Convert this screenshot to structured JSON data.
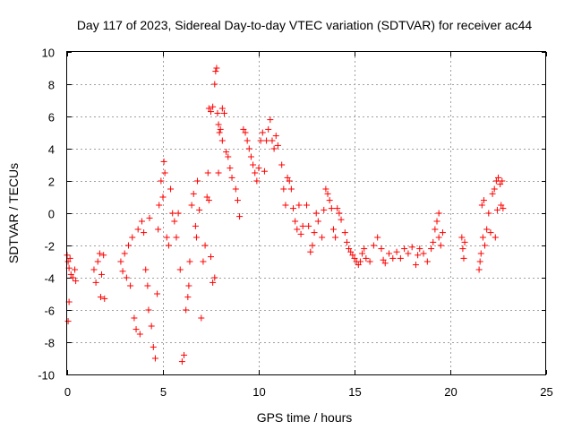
{
  "chart_data": {
    "type": "scatter",
    "title": "Day 117 of 2023, Sidereal Day-to-day VTEC variation (SDTVAR) for receiver ac44",
    "xlabel": "GPS time / hours",
    "ylabel": "SDTVAR / TECUs",
    "xlim": [
      0,
      25
    ],
    "ylim": [
      -10,
      10
    ],
    "xticks": [
      0,
      5,
      10,
      15,
      20,
      25
    ],
    "yticks": [
      -10,
      -8,
      -6,
      -4,
      -2,
      0,
      2,
      4,
      6,
      8,
      10
    ],
    "grid": true,
    "marker": "+",
    "color": "#ff0000",
    "series": [
      {
        "name": "SDTVAR",
        "points": [
          [
            0.0,
            -2.6
          ],
          [
            0.05,
            -3.0
          ],
          [
            0.1,
            -3.4
          ],
          [
            0.15,
            -2.8
          ],
          [
            0.1,
            -5.5
          ],
          [
            0.05,
            -6.7
          ],
          [
            0.2,
            -3.8
          ],
          [
            0.3,
            -4.0
          ],
          [
            0.4,
            -3.5
          ],
          [
            0.45,
            -4.2
          ],
          [
            1.4,
            -3.5
          ],
          [
            1.5,
            -4.3
          ],
          [
            1.6,
            -3.0
          ],
          [
            1.7,
            -2.5
          ],
          [
            1.75,
            -5.2
          ],
          [
            1.8,
            -3.8
          ],
          [
            1.9,
            -2.6
          ],
          [
            1.95,
            -5.3
          ],
          [
            2.8,
            -3.0
          ],
          [
            2.9,
            -3.6
          ],
          [
            3.0,
            -2.5
          ],
          [
            3.1,
            -4.0
          ],
          [
            3.2,
            -2.0
          ],
          [
            3.3,
            -4.5
          ],
          [
            3.4,
            -1.5
          ],
          [
            3.5,
            -6.5
          ],
          [
            3.6,
            -7.2
          ],
          [
            3.7,
            -1.0
          ],
          [
            3.8,
            -7.5
          ],
          [
            3.9,
            -0.5
          ],
          [
            4.0,
            -1.2
          ],
          [
            4.1,
            -3.5
          ],
          [
            4.2,
            -4.5
          ],
          [
            4.25,
            -6.0
          ],
          [
            4.3,
            -0.3
          ],
          [
            4.4,
            -7.0
          ],
          [
            4.5,
            -8.3
          ],
          [
            4.6,
            -9.0
          ],
          [
            4.7,
            -5.0
          ],
          [
            4.75,
            -1.0
          ],
          [
            4.8,
            0.5
          ],
          [
            4.9,
            2.0
          ],
          [
            5.0,
            1.0
          ],
          [
            5.05,
            3.2
          ],
          [
            5.1,
            2.5
          ],
          [
            5.2,
            -1.5
          ],
          [
            5.3,
            -2.0
          ],
          [
            5.4,
            1.5
          ],
          [
            5.5,
            0.0
          ],
          [
            5.6,
            -0.5
          ],
          [
            5.7,
            -1.5
          ],
          [
            5.8,
            0.0
          ],
          [
            5.9,
            -3.5
          ],
          [
            6.0,
            -9.2
          ],
          [
            6.1,
            -8.8
          ],
          [
            6.2,
            -6.0
          ],
          [
            6.3,
            -5.2
          ],
          [
            6.35,
            -4.5
          ],
          [
            6.4,
            -3.0
          ],
          [
            6.5,
            0.5
          ],
          [
            6.6,
            1.2
          ],
          [
            6.7,
            -0.8
          ],
          [
            6.75,
            -1.5
          ],
          [
            6.8,
            2.0
          ],
          [
            6.9,
            0.2
          ],
          [
            7.0,
            -6.5
          ],
          [
            7.1,
            -3.0
          ],
          [
            7.2,
            -2.0
          ],
          [
            7.3,
            1.0
          ],
          [
            7.35,
            2.5
          ],
          [
            7.4,
            0.8
          ],
          [
            7.5,
            -2.7
          ],
          [
            7.6,
            -4.3
          ],
          [
            7.7,
            -4.0
          ],
          [
            7.4,
            6.5
          ],
          [
            7.5,
            6.3
          ],
          [
            7.6,
            6.6
          ],
          [
            7.7,
            8.0
          ],
          [
            7.75,
            8.8
          ],
          [
            7.8,
            9.0
          ],
          [
            7.85,
            6.2
          ],
          [
            7.9,
            5.5
          ],
          [
            7.95,
            5.0
          ],
          [
            8.0,
            5.2
          ],
          [
            8.1,
            6.5
          ],
          [
            8.2,
            6.2
          ],
          [
            7.9,
            2.5
          ],
          [
            8.1,
            4.5
          ],
          [
            8.3,
            3.8
          ],
          [
            8.4,
            3.5
          ],
          [
            8.5,
            2.8
          ],
          [
            8.6,
            2.2
          ],
          [
            8.8,
            1.5
          ],
          [
            8.9,
            0.8
          ],
          [
            9.0,
            -0.2
          ],
          [
            9.2,
            5.2
          ],
          [
            9.3,
            5.0
          ],
          [
            9.4,
            4.5
          ],
          [
            9.5,
            4.0
          ],
          [
            9.6,
            3.5
          ],
          [
            9.7,
            3.0
          ],
          [
            9.8,
            2.5
          ],
          [
            9.9,
            2.0
          ],
          [
            10.0,
            2.8
          ],
          [
            10.1,
            4.5
          ],
          [
            10.2,
            5.0
          ],
          [
            10.3,
            2.6
          ],
          [
            10.4,
            4.5
          ],
          [
            10.5,
            5.2
          ],
          [
            10.6,
            5.8
          ],
          [
            10.7,
            4.5
          ],
          [
            10.8,
            4.0
          ],
          [
            10.9,
            4.8
          ],
          [
            11.0,
            4.2
          ],
          [
            11.2,
            3.0
          ],
          [
            11.3,
            1.5
          ],
          [
            11.4,
            0.5
          ],
          [
            11.5,
            2.2
          ],
          [
            11.6,
            2.0
          ],
          [
            11.7,
            1.5
          ],
          [
            11.8,
            0.3
          ],
          [
            11.9,
            -0.5
          ],
          [
            12.0,
            -1.0
          ],
          [
            12.1,
            0.5
          ],
          [
            12.2,
            -1.3
          ],
          [
            12.3,
            -0.8
          ],
          [
            12.5,
            0.5
          ],
          [
            12.6,
            -0.8
          ],
          [
            12.7,
            -2.4
          ],
          [
            12.8,
            -2.0
          ],
          [
            12.9,
            -1.2
          ],
          [
            13.0,
            0.0
          ],
          [
            13.1,
            -0.5
          ],
          [
            13.3,
            -1.5
          ],
          [
            13.4,
            0.2
          ],
          [
            13.5,
            1.5
          ],
          [
            13.6,
            1.2
          ],
          [
            13.7,
            0.8
          ],
          [
            13.8,
            0.3
          ],
          [
            13.9,
            -1.0
          ],
          [
            14.0,
            -1.5
          ],
          [
            14.1,
            0.3
          ],
          [
            14.2,
            0.0
          ],
          [
            14.3,
            -0.4
          ],
          [
            14.5,
            -1.2
          ],
          [
            14.6,
            -1.8
          ],
          [
            14.7,
            -2.2
          ],
          [
            14.8,
            -2.4
          ],
          [
            14.9,
            -2.6
          ],
          [
            15.0,
            -2.8
          ],
          [
            15.1,
            -3.0
          ],
          [
            15.2,
            -3.2
          ],
          [
            15.3,
            -3.0
          ],
          [
            15.4,
            -2.5
          ],
          [
            15.5,
            -2.2
          ],
          [
            15.6,
            -2.8
          ],
          [
            15.8,
            -3.0
          ],
          [
            16.0,
            -2.0
          ],
          [
            16.2,
            -1.5
          ],
          [
            16.4,
            -2.2
          ],
          [
            16.5,
            -2.9
          ],
          [
            16.6,
            -3.1
          ],
          [
            16.8,
            -2.5
          ],
          [
            17.0,
            -2.8
          ],
          [
            17.2,
            -2.4
          ],
          [
            17.4,
            -2.8
          ],
          [
            17.6,
            -2.2
          ],
          [
            17.8,
            -2.5
          ],
          [
            18.0,
            -2.1
          ],
          [
            18.2,
            -3.2
          ],
          [
            18.3,
            -2.6
          ],
          [
            18.4,
            -2.2
          ],
          [
            18.6,
            -2.5
          ],
          [
            18.8,
            -3.0
          ],
          [
            19.0,
            -2.2
          ],
          [
            19.1,
            -1.8
          ],
          [
            19.2,
            -1.0
          ],
          [
            19.3,
            -0.5
          ],
          [
            19.4,
            -1.5
          ],
          [
            19.5,
            -2.0
          ],
          [
            19.4,
            0.0
          ],
          [
            19.6,
            -1.2
          ],
          [
            20.6,
            -1.5
          ],
          [
            20.65,
            -2.2
          ],
          [
            20.7,
            -2.8
          ],
          [
            20.75,
            -1.8
          ],
          [
            21.5,
            -3.5
          ],
          [
            21.55,
            -3.0
          ],
          [
            21.6,
            -2.5
          ],
          [
            21.65,
            0.5
          ],
          [
            21.7,
            -1.5
          ],
          [
            21.75,
            0.8
          ],
          [
            21.8,
            -2.0
          ],
          [
            21.9,
            -1.0
          ],
          [
            22.0,
            0.0
          ],
          [
            22.1,
            -1.2
          ],
          [
            22.2,
            1.2
          ],
          [
            22.3,
            1.5
          ],
          [
            22.35,
            -1.5
          ],
          [
            22.4,
            2.0
          ],
          [
            22.45,
            0.2
          ],
          [
            22.5,
            2.2
          ],
          [
            22.6,
            1.8
          ],
          [
            22.65,
            0.5
          ],
          [
            22.7,
            2.0
          ],
          [
            22.75,
            0.3
          ]
        ]
      }
    ]
  }
}
